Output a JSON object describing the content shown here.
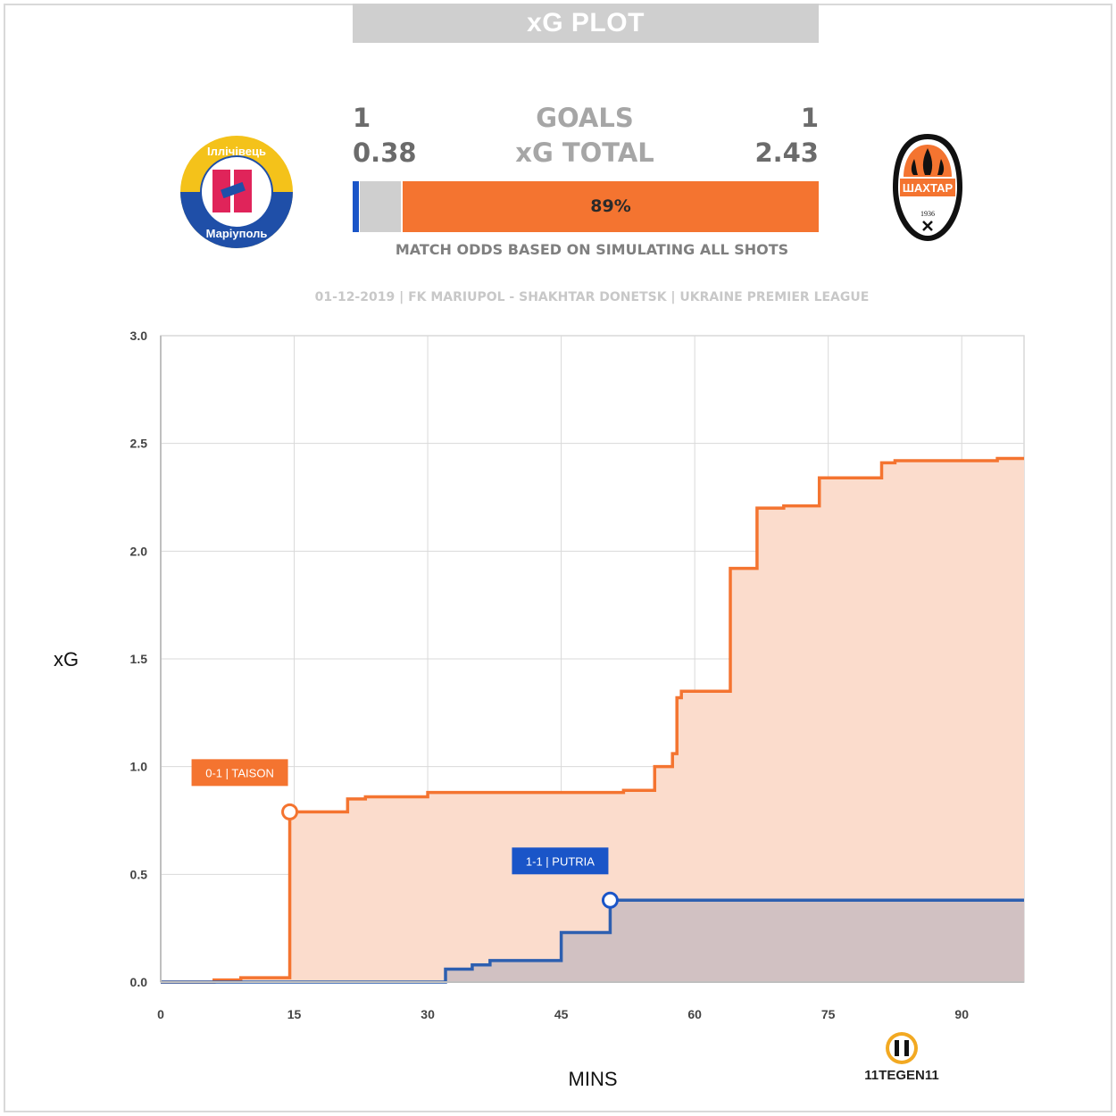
{
  "header": {
    "title": "xG PLOT"
  },
  "scoreboard": {
    "home_goals": "1",
    "away_goals": "1",
    "goals_label": "GOALS",
    "home_xg": "0.38",
    "away_xg": "2.43",
    "xg_label": "xG TOTAL",
    "odds": {
      "home_win": 0.01,
      "draw": 0.1,
      "away_win": 0.89,
      "away_win_label": "89%"
    },
    "odds_caption": "MATCH ODDS BASED ON SIMULATING ALL SHOTS"
  },
  "match_info": "01-12-2019 | FK MARIUPOL - SHAKHTAR DONETSK | UKRAINE PREMIER LEAGUE",
  "logos": {
    "home": {
      "name": "home-club-crest",
      "text_top": "Іллічівець",
      "text_bottom": "Маріуполь",
      "monogram": "И"
    },
    "away": {
      "name": "away-club-crest",
      "text": "ШАХТАР",
      "year": "1936"
    },
    "brand": {
      "name": "11tegen11-logo",
      "text": "11TEGEN11"
    }
  },
  "colors": {
    "home": "#2d5fb0",
    "away": "#f47430",
    "home_fill": "#c9bcc0",
    "away_fill": "#fbdccc",
    "grid": "#d9d9d9",
    "axis_label": "#444444"
  },
  "chart_data": {
    "type": "line",
    "step": true,
    "xlabel": "MINS",
    "ylabel": "xG",
    "xlim": [
      0,
      97
    ],
    "ylim": [
      0,
      3.0
    ],
    "x_ticks": [
      0,
      15,
      30,
      45,
      60,
      75,
      90
    ],
    "y_ticks": [
      "0.0",
      "0.5",
      "1.0",
      "1.5",
      "2.0",
      "2.5",
      "3.0"
    ],
    "grid": true,
    "series": [
      {
        "team": "away",
        "points": [
          [
            0,
            0
          ],
          [
            6,
            0.01
          ],
          [
            9,
            0.02
          ],
          [
            14.5,
            0.79
          ],
          [
            18,
            0.79
          ],
          [
            21,
            0.85
          ],
          [
            23,
            0.86
          ],
          [
            30,
            0.88
          ],
          [
            52,
            0.89
          ],
          [
            55.5,
            1.0
          ],
          [
            57.5,
            1.06
          ],
          [
            58,
            1.32
          ],
          [
            58.5,
            1.35
          ],
          [
            64,
            1.92
          ],
          [
            67,
            2.2
          ],
          [
            70,
            2.21
          ],
          [
            74,
            2.34
          ],
          [
            81,
            2.41
          ],
          [
            82.5,
            2.42
          ],
          [
            94,
            2.43
          ],
          [
            97,
            2.43
          ]
        ]
      },
      {
        "team": "home",
        "points": [
          [
            0,
            0
          ],
          [
            32,
            0.06
          ],
          [
            35,
            0.08
          ],
          [
            37,
            0.1
          ],
          [
            45,
            0.23
          ],
          [
            50.5,
            0.38
          ],
          [
            97,
            0.38
          ]
        ]
      }
    ],
    "annotations": [
      {
        "label": "0-1 | TAISON",
        "x": 14.5,
        "y": 0.79,
        "team": "away"
      },
      {
        "label": "1-1 | PUTRIA",
        "x": 50.5,
        "y": 0.38,
        "team": "home"
      }
    ]
  }
}
